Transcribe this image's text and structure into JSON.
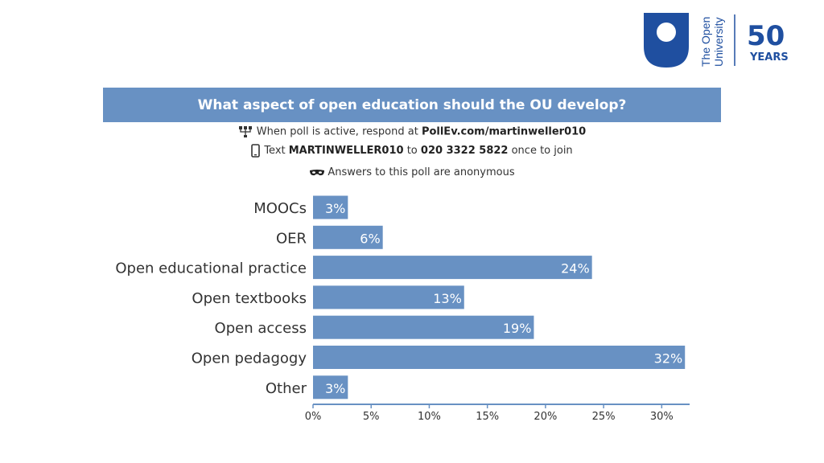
{
  "branding": {
    "university_lines": [
      "The Open",
      "University"
    ],
    "anniversary_number": "50",
    "anniversary_word": "YEARS",
    "brand_color": "#1f4fa0"
  },
  "poll": {
    "title": "What aspect of open education should the OU develop?",
    "respond_prefix": "When poll is active, respond at ",
    "respond_url": "PollEv.com/martinweller010",
    "text_prefix": "Text ",
    "text_code": "MARTINWELLER010",
    "text_middle": " to ",
    "text_number": "020 3322 5822",
    "text_suffix": " once to join",
    "anonymous_note": "Answers to this poll are anonymous"
  },
  "chart_data": {
    "type": "bar",
    "orientation": "horizontal",
    "categories": [
      "MOOCs",
      "OER",
      "Open educational practice",
      "Open textbooks",
      "Open access",
      "Open pedagogy",
      "Other"
    ],
    "values": [
      3,
      6,
      24,
      13,
      19,
      32,
      3
    ],
    "value_labels": [
      "3%",
      "6%",
      "24%",
      "13%",
      "19%",
      "32%",
      "3%"
    ],
    "xticks": [
      0,
      5,
      10,
      15,
      20,
      25,
      30
    ],
    "xtick_labels": [
      "0%",
      "5%",
      "10%",
      "15%",
      "20%",
      "25%",
      "30%"
    ],
    "xlim": [
      0,
      32.4
    ],
    "bar_color": "#6891c3",
    "grid": false
  }
}
